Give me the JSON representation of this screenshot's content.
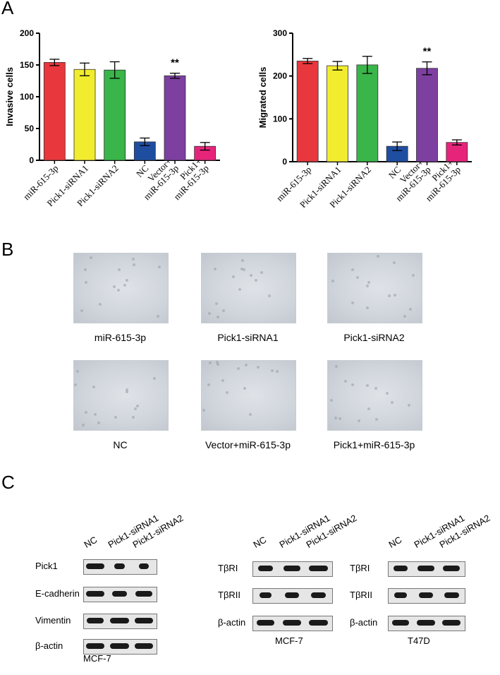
{
  "panels": {
    "A": "A",
    "B": "B",
    "C": "C"
  },
  "chart_data": [
    {
      "type": "bar",
      "ylabel": "Invasive cells",
      "ylim": [
        0,
        200
      ],
      "yticks": [
        "0",
        "50",
        "100",
        "150",
        "200"
      ],
      "categories": [
        "miR-615-3p",
        "Pick1-siRNA1",
        "Pick1-siRNA2",
        "NC",
        "Vector+\nmiR-615-3p",
        "Pick1+\nmiR-615-3p"
      ],
      "values": [
        154,
        143,
        142,
        29,
        133,
        22
      ],
      "errors": [
        5,
        10,
        13,
        6,
        4,
        6
      ],
      "colors": [
        "#e8383d",
        "#f2ec2e",
        "#39b54a",
        "#1f4ea1",
        "#7d3fa0",
        "#e6257a"
      ],
      "annotation": {
        "text": "**",
        "category_index": 4
      }
    },
    {
      "type": "bar",
      "ylabel": "Migrated cells",
      "ylim": [
        0,
        300
      ],
      "yticks": [
        "0",
        "100",
        "200",
        "300"
      ],
      "categories": [
        "miR-615-3p",
        "Pick1-siRNA1",
        "Pick1-siRNA2",
        "NC",
        "Vector+\nmiR-615-3p",
        "Pick1+\nmiR-615-3p"
      ],
      "values": [
        235,
        224,
        226,
        36,
        218,
        45
      ],
      "errors": [
        6,
        10,
        20,
        10,
        15,
        6
      ],
      "colors": [
        "#e8383d",
        "#f2ec2e",
        "#39b54a",
        "#1f4ea1",
        "#7d3fa0",
        "#e6257a"
      ],
      "annotation": {
        "text": "**",
        "category_index": 4
      }
    }
  ],
  "micrographs": [
    {
      "caption": "miR-615-3p"
    },
    {
      "caption": "Pick1-siRNA1"
    },
    {
      "caption": "Pick1-siRNA2"
    },
    {
      "caption": "NC"
    },
    {
      "caption": "Vector+miR-615-3p"
    },
    {
      "caption": "Pick1+miR-615-3p"
    }
  ],
  "western": [
    {
      "lanes": [
        "NC",
        "Pick1-siRNA1",
        "Pick1-siRNA2"
      ],
      "rows": [
        "Pick1",
        "E-cadherin",
        "Vimentin",
        "β-actin"
      ],
      "cell_line": "MCF-7"
    },
    {
      "lanes": [
        "NC",
        "Pick1-siRNA1",
        "Pick1-siRNA2"
      ],
      "rows": [
        "TβRI",
        "TβRII",
        "β-actin"
      ],
      "cell_line": "MCF-7"
    },
    {
      "lanes": [
        "NC",
        "Pick1-siRNA1",
        "Pick1-siRNA2"
      ],
      "rows": [
        "TβRI",
        "TβRII",
        "β-actin"
      ],
      "cell_line": "T47D"
    }
  ]
}
